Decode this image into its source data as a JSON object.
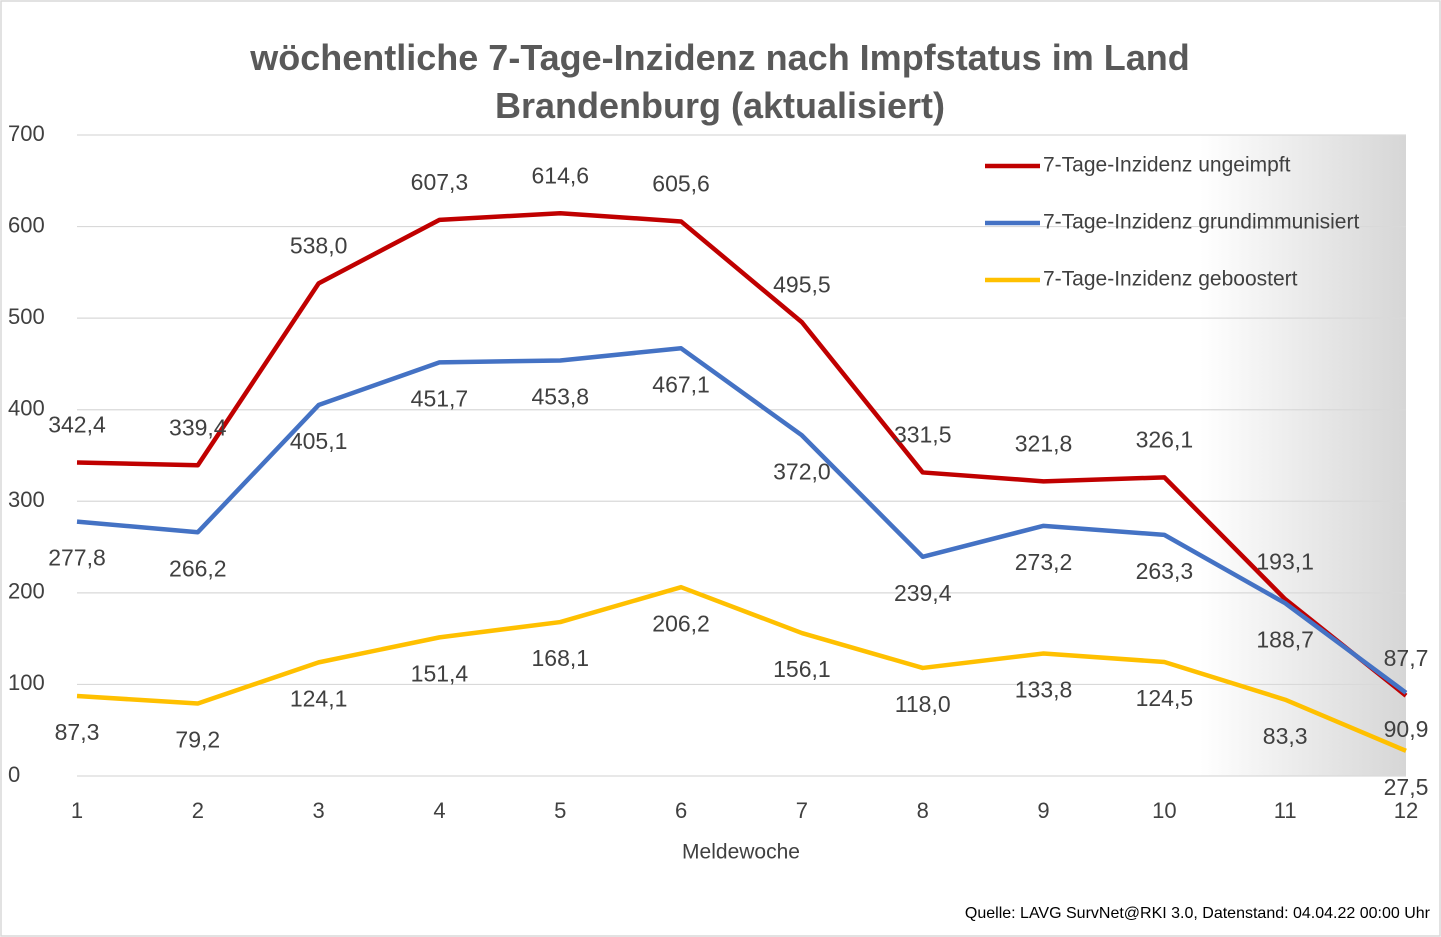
{
  "chart_data": {
    "type": "line",
    "title": "wöchentliche 7-Tage-Inzidenz nach Impfstatus im Land Brandenburg (aktualisiert)",
    "x_label": "Meldewoche",
    "source": "Quelle: LAVG SurvNet@RKI 3.0, Datenstand: 04.04.22 00:00 Uhr",
    "categories": [
      "1",
      "2",
      "3",
      "4",
      "5",
      "6",
      "7",
      "8",
      "9",
      "10",
      "11",
      "12"
    ],
    "ylim": [
      0,
      700
    ],
    "yticks": [
      0,
      100,
      200,
      300,
      400,
      500,
      600,
      700
    ],
    "grid": true,
    "legend": "upper right",
    "series": [
      {
        "name": "7-Tage-Inzidenz ungeimpft",
        "color": "#c00000",
        "values": [
          342.4,
          339.4,
          538.0,
          607.3,
          614.6,
          605.6,
          495.5,
          331.5,
          321.8,
          326.1,
          193.1,
          87.7
        ],
        "value_labels": [
          "342,4",
          "339,4",
          "538,0",
          "607,3",
          "614,6",
          "605,6",
          "495,5",
          "331,5",
          "321,8",
          "326,1",
          "193,1",
          "87,7"
        ]
      },
      {
        "name": "7-Tage-Inzidenz grundimmunisiert",
        "color": "#4472c4",
        "values": [
          277.8,
          266.2,
          405.1,
          451.7,
          453.8,
          467.1,
          372.0,
          239.4,
          273.2,
          263.3,
          188.7,
          90.9
        ],
        "value_labels": [
          "277,8",
          "266,2",
          "405,1",
          "451,7",
          "453,8",
          "467,1",
          "372,0",
          "239,4",
          "273,2",
          "263,3",
          "188,7",
          "90,9"
        ]
      },
      {
        "name": "7-Tage-Inzidenz geboostert",
        "color": "#ffc000",
        "values": [
          87.3,
          79.2,
          124.1,
          151.4,
          168.1,
          206.2,
          156.1,
          118.0,
          133.8,
          124.5,
          83.3,
          27.5
        ],
        "value_labels": [
          "87,3",
          "79,2",
          "124,1",
          "151,4",
          "168,1",
          "206,2",
          "156,1",
          "118,0",
          "133,8",
          "124,5",
          "83,3",
          "27,5"
        ]
      }
    ]
  }
}
